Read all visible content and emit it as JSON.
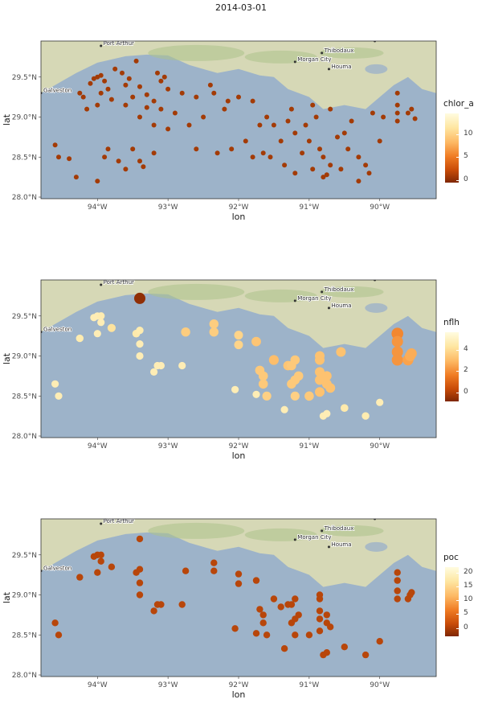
{
  "title": "2014-03-01",
  "colors": {
    "water": "#9db3c9",
    "land_light": "#d6d8b6",
    "land_dark": "#adc38b",
    "land_mid": "#c3cf9f",
    "dot_dark": "#a33b06"
  },
  "cities": [
    "Port Arthur",
    "Morgan City",
    "Thibodaux",
    "New Orleans",
    "Houma",
    "Galveston"
  ],
  "chart_data": [
    {
      "type": "scatter",
      "xlabel": "lon",
      "ylabel": "lat",
      "xlim": [
        -94.8,
        -89.2
      ],
      "ylim": [
        27.98,
        29.95
      ],
      "x_ticks": [
        "94°W",
        "93°W",
        "92°W",
        "91°W",
        "90°W"
      ],
      "y_ticks": [
        "28.0°N",
        "28.5°N",
        "29.0°N",
        "29.5°N"
      ],
      "legend_title": "chlor_a",
      "legend_ticks": [
        "10",
        "5",
        "0"
      ],
      "legend_range": [
        -0.5,
        14.5
      ],
      "points": [
        [
          -94.0,
          29.5
        ],
        [
          -94.05,
          29.48
        ],
        [
          -93.95,
          29.52
        ],
        [
          -93.9,
          29.45
        ],
        [
          -94.1,
          29.42
        ],
        [
          -93.85,
          29.35
        ],
        [
          -93.75,
          29.6
        ],
        [
          -93.65,
          29.55
        ],
        [
          -93.45,
          29.7
        ],
        [
          -93.55,
          29.48
        ],
        [
          -93.4,
          29.38
        ],
        [
          -93.3,
          29.28
        ],
        [
          -93.15,
          29.55
        ],
        [
          -93.05,
          29.5
        ],
        [
          -93.1,
          29.45
        ],
        [
          -93.0,
          29.35
        ],
        [
          -93.2,
          29.2
        ],
        [
          -93.1,
          29.1
        ],
        [
          -93.3,
          29.12
        ],
        [
          -93.5,
          29.25
        ],
        [
          -93.6,
          29.15
        ],
        [
          -93.8,
          29.22
        ],
        [
          -94.0,
          29.15
        ],
        [
          -94.15,
          29.1
        ],
        [
          -94.2,
          29.25
        ],
        [
          -93.4,
          29.0
        ],
        [
          -93.2,
          28.9
        ],
        [
          -93.0,
          28.85
        ],
        [
          -92.8,
          29.3
        ],
        [
          -92.6,
          29.25
        ],
        [
          -92.4,
          29.4
        ],
        [
          -92.35,
          29.3
        ],
        [
          -92.2,
          29.1
        ],
        [
          -92.0,
          29.25
        ],
        [
          -91.8,
          29.2
        ],
        [
          -91.6,
          29.0
        ],
        [
          -91.5,
          28.9
        ],
        [
          -91.3,
          28.95
        ],
        [
          -91.2,
          28.8
        ],
        [
          -91.0,
          28.7
        ],
        [
          -90.85,
          28.6
        ],
        [
          -90.8,
          28.5
        ],
        [
          -90.7,
          28.4
        ],
        [
          -90.6,
          28.75
        ],
        [
          -90.5,
          28.8
        ],
        [
          -90.45,
          28.6
        ],
        [
          -90.3,
          28.5
        ],
        [
          -90.2,
          28.4
        ],
        [
          -90.15,
          28.3
        ],
        [
          -90.0,
          28.7
        ],
        [
          -89.75,
          29.3
        ],
        [
          -89.75,
          29.15
        ],
        [
          -89.75,
          29.05
        ],
        [
          -89.75,
          28.95
        ],
        [
          -89.6,
          29.05
        ],
        [
          -89.55,
          29.1
        ],
        [
          -89.5,
          28.98
        ],
        [
          -94.6,
          28.65
        ],
        [
          -94.55,
          28.5
        ],
        [
          -94.4,
          28.48
        ],
        [
          -94.3,
          28.25
        ],
        [
          -94.0,
          28.2
        ],
        [
          -93.9,
          28.5
        ],
        [
          -93.85,
          28.6
        ],
        [
          -93.7,
          28.45
        ],
        [
          -93.6,
          28.35
        ],
        [
          -93.5,
          28.6
        ],
        [
          -93.4,
          28.45
        ],
        [
          -93.35,
          28.38
        ],
        [
          -93.2,
          28.55
        ],
        [
          -92.6,
          28.6
        ],
        [
          -92.3,
          28.55
        ],
        [
          -92.1,
          28.6
        ],
        [
          -91.9,
          28.7
        ],
        [
          -91.8,
          28.5
        ],
        [
          -91.65,
          28.55
        ],
        [
          -91.55,
          28.5
        ],
        [
          -91.35,
          28.4
        ],
        [
          -91.2,
          28.3
        ],
        [
          -91.1,
          28.55
        ],
        [
          -90.95,
          28.35
        ],
        [
          -90.8,
          28.25
        ],
        [
          -90.75,
          28.28
        ],
        [
          -90.55,
          28.35
        ],
        [
          -90.3,
          28.2
        ],
        [
          -92.9,
          29.05
        ],
        [
          -92.7,
          28.9
        ],
        [
          -92.5,
          29.0
        ],
        [
          -91.7,
          28.9
        ],
        [
          -91.4,
          28.7
        ],
        [
          -91.05,
          28.9
        ],
        [
          -90.9,
          29.0
        ],
        [
          -90.7,
          29.1
        ],
        [
          -90.4,
          28.95
        ],
        [
          -90.1,
          29.05
        ],
        [
          -89.95,
          29.0
        ],
        [
          -94.25,
          29.3
        ],
        [
          -93.95,
          29.3
        ],
        [
          -93.6,
          29.4
        ],
        [
          -92.15,
          29.2
        ],
        [
          -91.25,
          29.1
        ],
        [
          -90.95,
          29.15
        ]
      ],
      "values": []
    },
    {
      "type": "scatter",
      "xlabel": "lon",
      "ylabel": "lat",
      "xlim": [
        -94.8,
        -89.2
      ],
      "ylim": [
        27.98,
        29.95
      ],
      "x_ticks": [
        "94°W",
        "93°W",
        "92°W",
        "91°W",
        "90°W"
      ],
      "y_ticks": [
        "28.0°N",
        "28.5°N",
        "29.0°N",
        "29.5°N"
      ],
      "legend_title": "nflh",
      "legend_ticks": [
        "4",
        "2",
        "0"
      ],
      "legend_range": [
        -0.8,
        5.6
      ],
      "points": [
        [
          -93.4,
          29.72
        ],
        [
          -94.0,
          29.5
        ],
        [
          -94.05,
          29.48
        ],
        [
          -93.95,
          29.5
        ],
        [
          -93.95,
          29.42
        ],
        [
          -94.0,
          29.28
        ],
        [
          -94.25,
          29.22
        ],
        [
          -93.8,
          29.35
        ],
        [
          -93.45,
          29.28
        ],
        [
          -93.4,
          29.32
        ],
        [
          -93.4,
          29.15
        ],
        [
          -93.4,
          29.0
        ],
        [
          -93.15,
          28.88
        ],
        [
          -93.1,
          28.88
        ],
        [
          -93.2,
          28.8
        ],
        [
          -92.8,
          28.88
        ],
        [
          -92.75,
          29.3
        ],
        [
          -92.35,
          29.4
        ],
        [
          -92.35,
          29.3
        ],
        [
          -92.0,
          29.26
        ],
        [
          -92.0,
          29.14
        ],
        [
          -91.75,
          29.18
        ],
        [
          -91.5,
          28.95
        ],
        [
          -91.7,
          28.82
        ],
        [
          -91.65,
          28.75
        ],
        [
          -91.65,
          28.65
        ],
        [
          -91.6,
          28.5
        ],
        [
          -91.3,
          28.88
        ],
        [
          -91.2,
          28.95
        ],
        [
          -91.25,
          28.88
        ],
        [
          -91.15,
          28.75
        ],
        [
          -91.2,
          28.7
        ],
        [
          -91.25,
          28.65
        ],
        [
          -91.2,
          28.5
        ],
        [
          -91.0,
          28.5
        ],
        [
          -90.85,
          28.55
        ],
        [
          -90.85,
          28.7
        ],
        [
          -90.85,
          28.8
        ],
        [
          -90.85,
          28.95
        ],
        [
          -90.85,
          29.0
        ],
        [
          -90.75,
          28.65
        ],
        [
          -90.75,
          28.75
        ],
        [
          -90.7,
          28.6
        ],
        [
          -90.55,
          29.05
        ],
        [
          -90.5,
          28.35
        ],
        [
          -90.2,
          28.25
        ],
        [
          -90.0,
          28.42
        ],
        [
          -89.75,
          29.28
        ],
        [
          -89.75,
          29.18
        ],
        [
          -89.75,
          29.05
        ],
        [
          -89.75,
          28.95
        ],
        [
          -89.6,
          28.95
        ],
        [
          -89.57,
          29.0
        ],
        [
          -89.55,
          29.03
        ],
        [
          -94.6,
          28.65
        ],
        [
          -94.55,
          28.5
        ],
        [
          -92.05,
          28.58
        ],
        [
          -91.75,
          28.52
        ],
        [
          -91.35,
          28.33
        ],
        [
          -90.8,
          28.25
        ],
        [
          -90.75,
          28.28
        ]
      ],
      "values": [
        5.3,
        0.1,
        0.1,
        0.2,
        0.1,
        0.1,
        0.2,
        0.6,
        0.3,
        0.2,
        0.1,
        0.1,
        0.1,
        0.1,
        0.1,
        0.1,
        1.2,
        1.2,
        1.2,
        1.0,
        1.0,
        1.4,
        1.6,
        1.3,
        1.3,
        1.3,
        1.1,
        1.4,
        1.3,
        1.3,
        1.3,
        1.3,
        1.3,
        1.1,
        1.3,
        1.5,
        1.5,
        1.5,
        1.5,
        1.5,
        1.5,
        1.5,
        1.5,
        1.5,
        0.3,
        0.2,
        0.1,
        2.8,
        2.5,
        2.5,
        2.5,
        2.2,
        2.0,
        2.0,
        0.1,
        0.1,
        0.1,
        0.1,
        0.1,
        0.1,
        0.1
      ]
    },
    {
      "type": "scatter",
      "xlabel": "lon",
      "ylabel": "lat",
      "xlim": [
        -94.8,
        -89.2
      ],
      "ylim": [
        27.98,
        29.95
      ],
      "x_ticks": [
        "94°W",
        "93°W",
        "92°W",
        "91°W",
        "90°W"
      ],
      "y_ticks": [
        "28.0°N",
        "28.5°N",
        "29.0°N",
        "29.5°N"
      ],
      "legend_title": "poc",
      "legend_ticks": [
        "20",
        "15",
        "10",
        "5",
        "0"
      ],
      "legend_range": [
        -3,
        22
      ],
      "points": [
        [
          -93.4,
          29.7
        ],
        [
          -94.0,
          29.5
        ],
        [
          -94.05,
          29.48
        ],
        [
          -93.95,
          29.5
        ],
        [
          -93.95,
          29.42
        ],
        [
          -94.0,
          29.28
        ],
        [
          -94.25,
          29.22
        ],
        [
          -93.8,
          29.35
        ],
        [
          -93.45,
          29.28
        ],
        [
          -93.4,
          29.32
        ],
        [
          -93.4,
          29.15
        ],
        [
          -93.4,
          29.0
        ],
        [
          -93.15,
          28.88
        ],
        [
          -93.1,
          28.88
        ],
        [
          -93.2,
          28.8
        ],
        [
          -92.8,
          28.88
        ],
        [
          -92.75,
          29.3
        ],
        [
          -92.35,
          29.4
        ],
        [
          -92.35,
          29.3
        ],
        [
          -92.0,
          29.26
        ],
        [
          -92.0,
          29.14
        ],
        [
          -91.75,
          29.18
        ],
        [
          -91.5,
          28.95
        ],
        [
          -91.7,
          28.82
        ],
        [
          -91.65,
          28.75
        ],
        [
          -91.65,
          28.65
        ],
        [
          -91.6,
          28.5
        ],
        [
          -91.3,
          28.88
        ],
        [
          -91.2,
          28.95
        ],
        [
          -91.25,
          28.88
        ],
        [
          -91.15,
          28.75
        ],
        [
          -91.2,
          28.7
        ],
        [
          -91.25,
          28.65
        ],
        [
          -91.2,
          28.5
        ],
        [
          -91.0,
          28.5
        ],
        [
          -90.85,
          28.55
        ],
        [
          -90.85,
          28.7
        ],
        [
          -90.85,
          28.8
        ],
        [
          -90.85,
          28.95
        ],
        [
          -90.85,
          29.0
        ],
        [
          -90.75,
          28.65
        ],
        [
          -90.75,
          28.75
        ],
        [
          -90.7,
          28.6
        ],
        [
          -90.5,
          28.35
        ],
        [
          -90.2,
          28.25
        ],
        [
          -90.0,
          28.42
        ],
        [
          -89.75,
          29.28
        ],
        [
          -89.75,
          29.18
        ],
        [
          -89.75,
          29.05
        ],
        [
          -89.75,
          28.95
        ],
        [
          -89.6,
          28.95
        ],
        [
          -89.57,
          29.0
        ],
        [
          -89.55,
          29.03
        ],
        [
          -94.6,
          28.65
        ],
        [
          -94.55,
          28.5
        ],
        [
          -92.05,
          28.58
        ],
        [
          -91.75,
          28.52
        ],
        [
          -91.35,
          28.33
        ],
        [
          -90.8,
          28.25
        ],
        [
          -90.75,
          28.28
        ],
        [
          -91.4,
          28.85
        ]
      ],
      "values": []
    }
  ]
}
